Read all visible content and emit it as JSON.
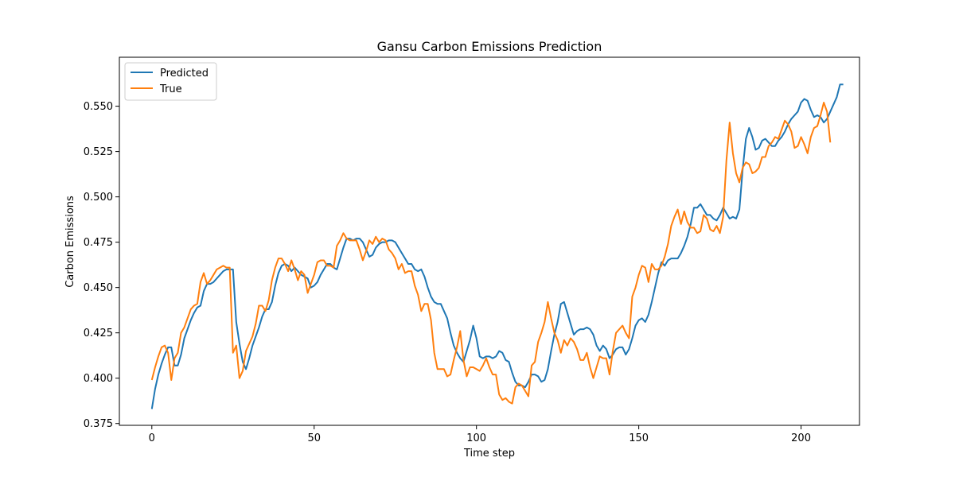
{
  "chart_data": {
    "type": "line",
    "title": "Gansu Carbon Emissions Prediction",
    "xlabel": "Time step",
    "ylabel": "Carbon Emissions",
    "xlim": [
      -10,
      218
    ],
    "ylim": [
      0.374,
      0.577
    ],
    "xticks": [
      0,
      50,
      100,
      150,
      200
    ],
    "yticks": [
      0.375,
      0.4,
      0.425,
      0.45,
      0.475,
      0.5,
      0.525,
      0.55
    ],
    "ytick_labels": [
      "0.375",
      "0.400",
      "0.425",
      "0.450",
      "0.475",
      "0.500",
      "0.525",
      "0.550"
    ],
    "grid": false,
    "legend_position": "top-left",
    "x_start": 0,
    "series": [
      {
        "name": "Predicted",
        "color": "#1f77b4",
        "values": [
          0.383,
          0.394,
          0.402,
          0.408,
          0.413,
          0.417,
          0.417,
          0.407,
          0.407,
          0.413,
          0.422,
          0.427,
          0.432,
          0.436,
          0.439,
          0.44,
          0.448,
          0.452,
          0.452,
          0.453,
          0.455,
          0.457,
          0.459,
          0.46,
          0.46,
          0.46,
          0.431,
          0.419,
          0.409,
          0.405,
          0.411,
          0.418,
          0.423,
          0.428,
          0.434,
          0.438,
          0.438,
          0.442,
          0.451,
          0.458,
          0.462,
          0.463,
          0.462,
          0.459,
          0.461,
          0.459,
          0.457,
          0.456,
          0.455,
          0.45,
          0.451,
          0.453,
          0.457,
          0.46,
          0.463,
          0.463,
          0.461,
          0.46,
          0.466,
          0.472,
          0.477,
          0.477,
          0.476,
          0.477,
          0.477,
          0.475,
          0.471,
          0.467,
          0.468,
          0.472,
          0.474,
          0.475,
          0.475,
          0.476,
          0.476,
          0.475,
          0.472,
          0.469,
          0.466,
          0.463,
          0.463,
          0.46,
          0.459,
          0.46,
          0.456,
          0.45,
          0.445,
          0.442,
          0.441,
          0.441,
          0.437,
          0.433,
          0.425,
          0.418,
          0.414,
          0.411,
          0.409,
          0.415,
          0.421,
          0.429,
          0.422,
          0.412,
          0.411,
          0.412,
          0.412,
          0.411,
          0.412,
          0.415,
          0.414,
          0.41,
          0.409,
          0.403,
          0.398,
          0.396,
          0.396,
          0.395,
          0.398,
          0.402,
          0.402,
          0.401,
          0.398,
          0.399,
          0.405,
          0.415,
          0.424,
          0.431,
          0.441,
          0.442,
          0.436,
          0.43,
          0.424,
          0.426,
          0.427,
          0.427,
          0.428,
          0.427,
          0.424,
          0.418,
          0.415,
          0.418,
          0.416,
          0.411,
          0.413,
          0.416,
          0.417,
          0.417,
          0.413,
          0.416,
          0.422,
          0.429,
          0.432,
          0.433,
          0.431,
          0.435,
          0.442,
          0.45,
          0.458,
          0.464,
          0.462,
          0.465,
          0.466,
          0.466,
          0.466,
          0.469,
          0.473,
          0.478,
          0.485,
          0.494,
          0.494,
          0.496,
          0.493,
          0.49,
          0.49,
          0.488,
          0.487,
          0.49,
          0.494,
          0.491,
          0.488,
          0.489,
          0.488,
          0.493,
          0.515,
          0.532,
          0.538,
          0.533,
          0.526,
          0.527,
          0.531,
          0.532,
          0.53,
          0.528,
          0.528,
          0.531,
          0.533,
          0.536,
          0.54,
          0.543,
          0.545,
          0.547,
          0.552,
          0.554,
          0.553,
          0.548,
          0.544,
          0.545,
          0.544,
          0.541,
          0.543,
          0.547,
          0.551,
          0.555,
          0.562,
          0.562
        ]
      },
      {
        "name": "True",
        "color": "#ff7f0e",
        "values": [
          0.399,
          0.406,
          0.412,
          0.417,
          0.418,
          0.414,
          0.399,
          0.411,
          0.414,
          0.425,
          0.428,
          0.433,
          0.438,
          0.44,
          0.441,
          0.453,
          0.458,
          0.452,
          0.454,
          0.457,
          0.46,
          0.461,
          0.462,
          0.461,
          0.461,
          0.414,
          0.418,
          0.4,
          0.404,
          0.415,
          0.419,
          0.423,
          0.43,
          0.44,
          0.44,
          0.437,
          0.443,
          0.454,
          0.461,
          0.466,
          0.466,
          0.463,
          0.459,
          0.465,
          0.46,
          0.454,
          0.459,
          0.457,
          0.447,
          0.452,
          0.457,
          0.464,
          0.465,
          0.465,
          0.462,
          0.462,
          0.461,
          0.473,
          0.476,
          0.48,
          0.477,
          0.476,
          0.476,
          0.476,
          0.471,
          0.465,
          0.47,
          0.476,
          0.474,
          0.478,
          0.475,
          0.477,
          0.476,
          0.471,
          0.469,
          0.466,
          0.46,
          0.463,
          0.458,
          0.459,
          0.459,
          0.451,
          0.446,
          0.437,
          0.441,
          0.441,
          0.432,
          0.414,
          0.405,
          0.405,
          0.405,
          0.401,
          0.402,
          0.41,
          0.417,
          0.426,
          0.41,
          0.401,
          0.406,
          0.406,
          0.405,
          0.404,
          0.407,
          0.411,
          0.406,
          0.402,
          0.402,
          0.391,
          0.388,
          0.389,
          0.387,
          0.386,
          0.395,
          0.397,
          0.396,
          0.393,
          0.39,
          0.407,
          0.409,
          0.42,
          0.425,
          0.431,
          0.442,
          0.433,
          0.425,
          0.421,
          0.414,
          0.421,
          0.418,
          0.422,
          0.42,
          0.416,
          0.41,
          0.41,
          0.414,
          0.406,
          0.4,
          0.406,
          0.412,
          0.411,
          0.411,
          0.402,
          0.415,
          0.425,
          0.427,
          0.429,
          0.425,
          0.422,
          0.445,
          0.45,
          0.457,
          0.462,
          0.461,
          0.453,
          0.463,
          0.46,
          0.46,
          0.462,
          0.467,
          0.474,
          0.484,
          0.489,
          0.493,
          0.485,
          0.492,
          0.486,
          0.483,
          0.483,
          0.48,
          0.481,
          0.49,
          0.488,
          0.482,
          0.481,
          0.484,
          0.48,
          0.489,
          0.52,
          0.541,
          0.524,
          0.513,
          0.508,
          0.516,
          0.519,
          0.518,
          0.513,
          0.514,
          0.516,
          0.522,
          0.522,
          0.528,
          0.53,
          0.533,
          0.532,
          0.537,
          0.542,
          0.54,
          0.536,
          0.527,
          0.528,
          0.533,
          0.529,
          0.524,
          0.533,
          0.538,
          0.539,
          0.545,
          0.552,
          0.547,
          0.53
        ]
      }
    ]
  }
}
